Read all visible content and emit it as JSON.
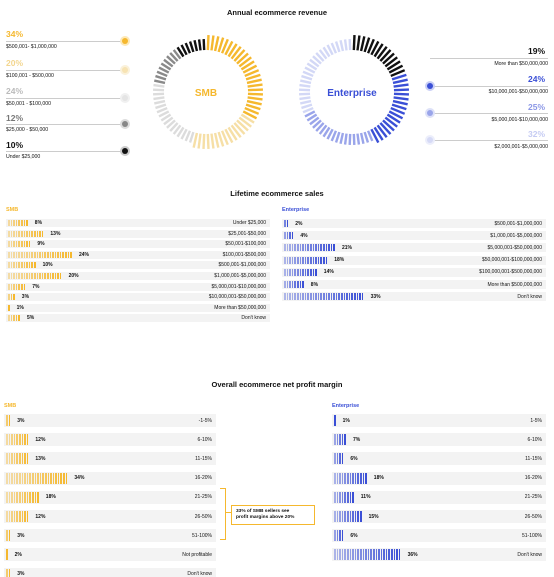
{
  "colors": {
    "smb": "#f5b82e",
    "enterprise": "#3a4fd6",
    "dark": "#111111",
    "grey": "#cccccc"
  },
  "revenue": {
    "title": "Annual ecommerce revenue",
    "smb_label": "SMB",
    "ent_label": "Enterprise",
    "smb_items": [
      {
        "pct": "34%",
        "range": "$500,001- $1,000,000"
      },
      {
        "pct": "20%",
        "range": "$100,001 - $500,000"
      },
      {
        "pct": "24%",
        "range": "$50,001 - $100,000"
      },
      {
        "pct": "12%",
        "range": "$25,000 - $50,000"
      },
      {
        "pct": "10%",
        "range": "Under $25,000"
      }
    ],
    "ent_items": [
      {
        "pct": "19%",
        "range": "More than $50,000,000"
      },
      {
        "pct": "24%",
        "range": "$10,000,001-$50,000,000"
      },
      {
        "pct": "25%",
        "range": "$5,000,001-$10,000,000"
      },
      {
        "pct": "32%",
        "range": "$2,000,001-$5,000,000"
      }
    ]
  },
  "lifetime": {
    "title": "Lifetime ecommerce sales",
    "smb_label": "SMB",
    "ent_label": "Enterprise"
  },
  "profit": {
    "title": "Overall ecommerce net profit margin",
    "smb_label": "SMB",
    "ent_label": "Enterprise",
    "note_line1": "33% of SMB sellers see",
    "note_line2": "profit margins above 20%"
  },
  "chart_data": [
    {
      "type": "pie",
      "title": "Annual ecommerce revenue",
      "categories": [
        "$500,001- $1,000,000",
        "$100,001 - $500,000",
        "$50,001 - $100,000",
        "$25,000 - $50,000",
        "Under $25,000"
      ],
      "values": [
        34,
        20,
        24,
        12,
        10
      ],
      "center_label": "SMB"
    },
    {
      "type": "pie",
      "title": "Annual ecommerce revenue",
      "categories": [
        "More than $50,000,000",
        "$10,000,001-$50,000,000",
        "$5,000,001-$10,000,000",
        "$2,000,001-$5,000,000"
      ],
      "values": [
        19,
        24,
        25,
        32
      ],
      "center_label": "Enterprise"
    },
    {
      "type": "bar",
      "title": "Lifetime ecommerce sales",
      "series": [
        {
          "name": "SMB",
          "values": [
            8,
            13,
            9,
            24,
            10,
            20,
            7,
            3,
            1,
            5
          ]
        }
      ],
      "categories": [
        "Under $25,000",
        "$25,001-$50,000",
        "$50,001-$100,000",
        "$100,001-$500,000",
        "$500,001-$1,000,000",
        "$1,000,001-$5,000,000",
        "$5,000,001-$10,000,000",
        "$10,000,001-$50,000,000",
        "More than $50,000,000",
        "Don't know"
      ]
    },
    {
      "type": "bar",
      "title": "Lifetime ecommerce sales",
      "series": [
        {
          "name": "Enterprise",
          "values": [
            2,
            4,
            21,
            18,
            14,
            8,
            33
          ]
        }
      ],
      "categories": [
        "$500,001-$1,000,000",
        "$1,000,001-$5,000,000",
        "$5,000,001-$50,000,000",
        "$50,000,001-$100,000,000",
        "$100,000,001-$500,000,000",
        "More than $500,000,000",
        "Don't know"
      ]
    },
    {
      "type": "bar",
      "title": "Overall ecommerce net profit margin",
      "series": [
        {
          "name": "SMB",
          "values": [
            3,
            12,
            13,
            34,
            18,
            12,
            3,
            2,
            3
          ]
        }
      ],
      "categories": [
        "-1-5%",
        "6-10%",
        "11-15%",
        "16-20%",
        "21-25%",
        "26-50%",
        "51-100%",
        "Not profitable",
        "Don't know"
      ]
    },
    {
      "type": "bar",
      "title": "Overall ecommerce net profit margin",
      "series": [
        {
          "name": "Enterprise",
          "values": [
            1,
            7,
            6,
            18,
            11,
            15,
            6,
            36
          ]
        }
      ],
      "categories": [
        "1-5%",
        "6-10%",
        "11-15%",
        "16-20%",
        "21-25%",
        "26-50%",
        "51-100%",
        "Don't know"
      ]
    }
  ]
}
